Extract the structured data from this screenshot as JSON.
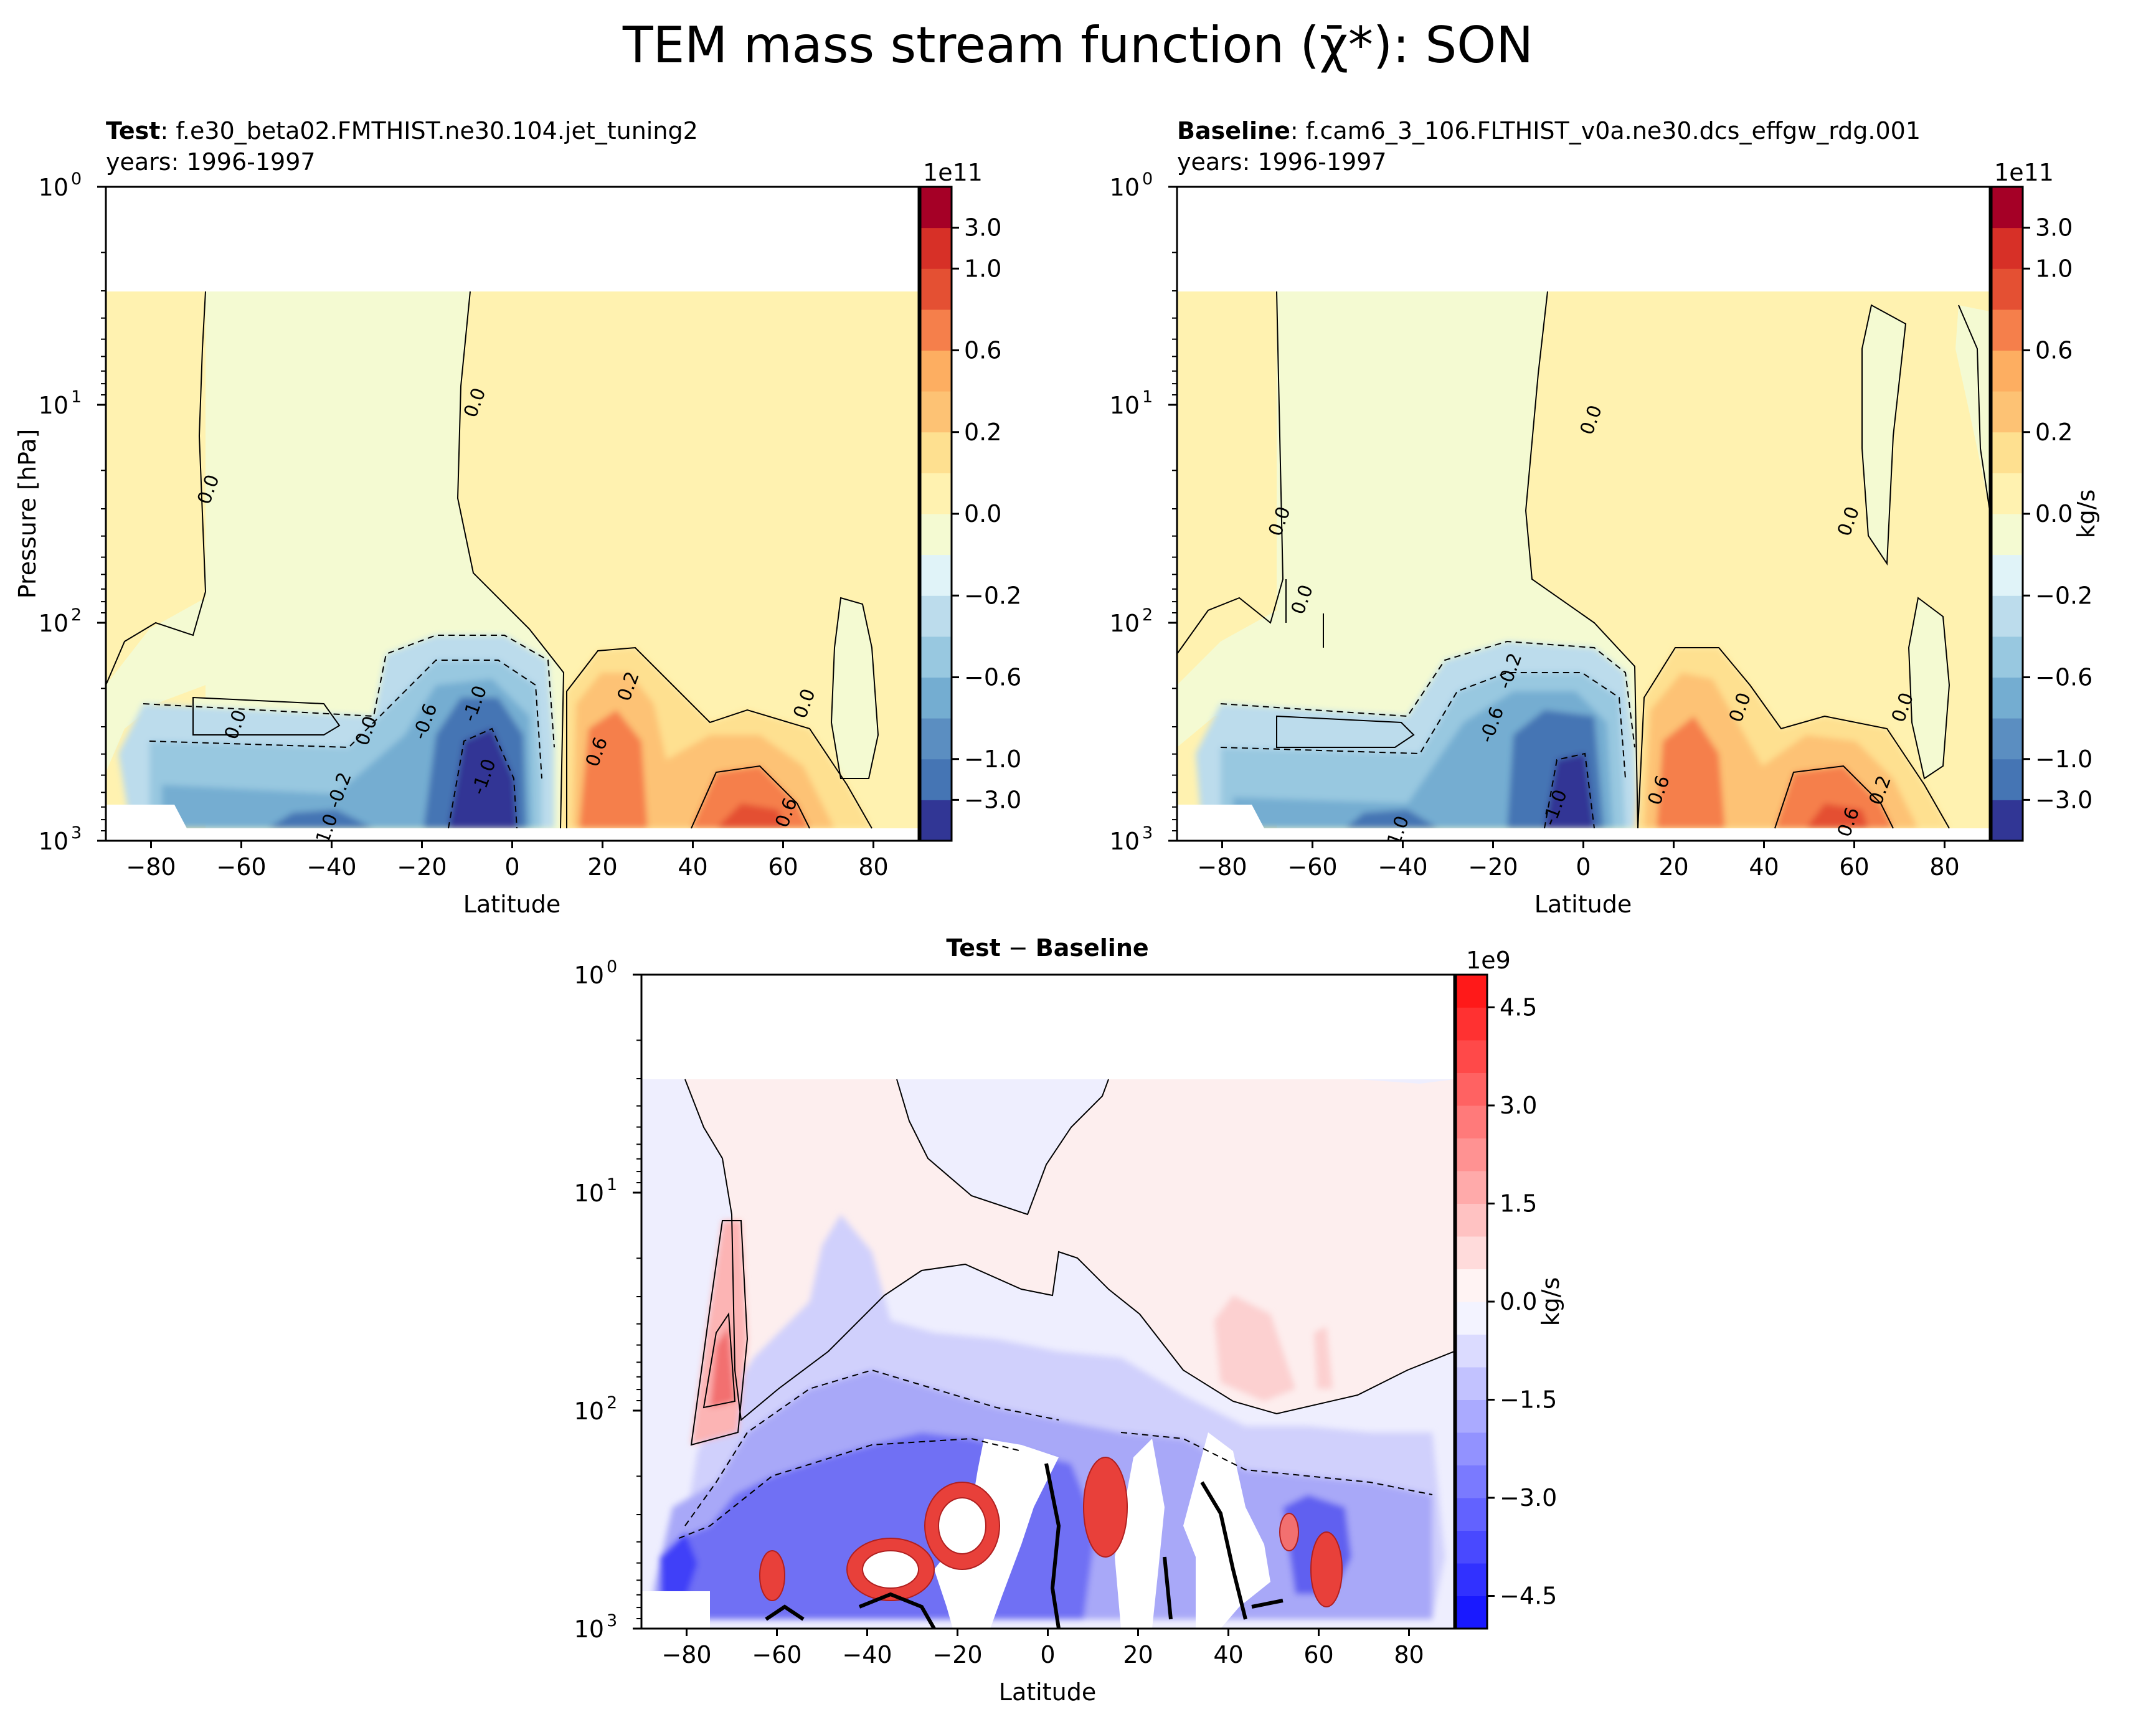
{
  "figure": {
    "suptitle": "TEM mass stream function (χ̄*): SON"
  },
  "chart_data": [
    {
      "id": "test",
      "type": "heatmap",
      "title_bold": "Test",
      "title_rest": ": f.e30_beta02.FMTHIST.ne30.104.jet_tuning2",
      "subtitle": "years: 1996-1997",
      "xlabel": "Latitude",
      "ylabel": "Pressure [hPa]",
      "x_ticks": [
        -80,
        -60,
        -40,
        -20,
        0,
        20,
        40,
        60,
        80
      ],
      "x_tick_labels": [
        "−80",
        "−60",
        "−40",
        "−20",
        "0",
        "20",
        "40",
        "60",
        "80"
      ],
      "xlim": [
        -90,
        90
      ],
      "y_scale": "log",
      "ylim": [
        1000,
        1
      ],
      "y_ticks": [
        1,
        10,
        100,
        1000
      ],
      "y_tick_labels": [
        "10",
        "10",
        "10",
        "10"
      ],
      "y_tick_exponents": [
        "0",
        "1",
        "2",
        "3"
      ],
      "colorbar": {
        "offset_text": "1e11",
        "unit": "",
        "levels": [
          -3.0,
          -1.0,
          -0.8,
          -0.6,
          -0.4,
          -0.2,
          -0.1,
          0.0,
          0.1,
          0.2,
          0.4,
          0.6,
          0.8,
          1.0,
          3.0
        ],
        "colors": [
          "#313695",
          "#4575b4",
          "#5b8ec1",
          "#74add1",
          "#98c8e0",
          "#bcdcec",
          "#e0f3f8",
          "#f4fad2",
          "#fff2b0",
          "#fee090",
          "#fdc274",
          "#fdae61",
          "#f57f4b",
          "#e45033",
          "#d73027",
          "#a50026"
        ],
        "tick_values": [
          3.0,
          1.0,
          0.6,
          0.2,
          0.0,
          -0.2,
          -0.6,
          -1.0,
          -3.0
        ],
        "tick_labels": [
          "3.0",
          "1.0",
          "0.6",
          "0.2",
          "0.0",
          "−0.2",
          "−0.6",
          "−1.0",
          "−3.0"
        ]
      },
      "contour_labels": [
        {
          "text": "0.0",
          "lat": -66,
          "p": 25
        },
        {
          "text": "0.0",
          "lat": -7,
          "p": 10
        },
        {
          "text": "0.0",
          "lat": -60,
          "p": 300
        },
        {
          "text": "0.0",
          "lat": -31,
          "p": 320
        },
        {
          "text": "-0.2",
          "lat": -37,
          "p": 600
        },
        {
          "text": "-1.0",
          "lat": -40,
          "p": 930
        },
        {
          "text": "-0.6",
          "lat": -18,
          "p": 290
        },
        {
          "text": "-1.0",
          "lat": -7,
          "p": 240
        },
        {
          "text": "-1.0",
          "lat": -5,
          "p": 520
        },
        {
          "text": "0.2",
          "lat": 27,
          "p": 200
        },
        {
          "text": "0.6",
          "lat": 20,
          "p": 400
        },
        {
          "text": "0.0",
          "lat": 66,
          "p": 240
        },
        {
          "text": "0.6",
          "lat": 62,
          "p": 760
        }
      ]
    },
    {
      "id": "baseline",
      "type": "heatmap",
      "title_bold": "Baseline",
      "title_rest": ": f.cam6_3_106.FLTHIST_v0a.ne30.dcs_effgw_rdg.001",
      "subtitle": "years: 1996-1997",
      "xlabel": "Latitude",
      "ylabel": "",
      "x_ticks": [
        -80,
        -60,
        -40,
        -20,
        0,
        20,
        40,
        60,
        80
      ],
      "x_tick_labels": [
        "−80",
        "−60",
        "−40",
        "−20",
        "0",
        "20",
        "40",
        "60",
        "80"
      ],
      "xlim": [
        -90,
        90
      ],
      "y_scale": "log",
      "ylim": [
        1000,
        1
      ],
      "y_ticks": [
        1,
        10,
        100,
        1000
      ],
      "y_tick_labels": [
        "10",
        "10",
        "10",
        "10"
      ],
      "y_tick_exponents": [
        "0",
        "1",
        "2",
        "3"
      ],
      "colorbar": {
        "offset_text": "1e11",
        "unit": "kg/s",
        "levels": [
          -3.0,
          -1.0,
          -0.8,
          -0.6,
          -0.4,
          -0.2,
          -0.1,
          0.0,
          0.1,
          0.2,
          0.4,
          0.6,
          0.8,
          1.0,
          3.0
        ],
        "colors": [
          "#313695",
          "#4575b4",
          "#5b8ec1",
          "#74add1",
          "#98c8e0",
          "#bcdcec",
          "#e0f3f8",
          "#f4fad2",
          "#fff2b0",
          "#fee090",
          "#fdc274",
          "#fdae61",
          "#f57f4b",
          "#e45033",
          "#d73027",
          "#a50026"
        ],
        "tick_values": [
          3.0,
          1.0,
          0.6,
          0.2,
          0.0,
          -0.2,
          -0.6,
          -1.0,
          -3.0
        ],
        "tick_labels": [
          "3.0",
          "1.0",
          "0.6",
          "0.2",
          "0.0",
          "−0.2",
          "−0.6",
          "−1.0",
          "−3.0"
        ]
      },
      "contour_labels": [
        {
          "text": "0.0",
          "lat": 3,
          "p": 12
        },
        {
          "text": "0.0",
          "lat": -66,
          "p": 35
        },
        {
          "text": "0.0",
          "lat": 60,
          "p": 35
        },
        {
          "text": "0.0",
          "lat": -61,
          "p": 80
        },
        {
          "text": "-0.2",
          "lat": -15,
          "p": 170
        },
        {
          "text": "-0.6",
          "lat": -19,
          "p": 300
        },
        {
          "text": "-1.0",
          "lat": -5,
          "p": 720
        },
        {
          "text": "-1.0",
          "lat": -40,
          "p": 950
        },
        {
          "text": "0.0",
          "lat": 36,
          "p": 250
        },
        {
          "text": "0.0",
          "lat": 72,
          "p": 250
        },
        {
          "text": "0.6",
          "lat": 18,
          "p": 600
        },
        {
          "text": "0.2",
          "lat": 67,
          "p": 600
        },
        {
          "text": "0.6",
          "lat": 60,
          "p": 840
        }
      ]
    },
    {
      "id": "diff",
      "type": "heatmap",
      "title": "Test − Baseline",
      "title_bold_a": "Test",
      "title_sep": " − ",
      "title_bold_b": "Baseline",
      "xlabel": "Latitude",
      "ylabel": "",
      "x_ticks": [
        -80,
        -60,
        -40,
        -20,
        0,
        20,
        40,
        60,
        80
      ],
      "x_tick_labels": [
        "−80",
        "−60",
        "−40",
        "−20",
        "0",
        "20",
        "40",
        "60",
        "80"
      ],
      "xlim": [
        -90,
        90
      ],
      "y_scale": "log",
      "ylim": [
        1000,
        1
      ],
      "y_ticks": [
        1,
        10,
        100,
        1000
      ],
      "y_tick_labels": [
        "10",
        "10",
        "10",
        "10"
      ],
      "y_tick_exponents": [
        "0",
        "1",
        "2",
        "3"
      ],
      "colorbar": {
        "offset_text": "1e9",
        "unit": "kg/s",
        "vmin": -5.0,
        "vmax": 5.0,
        "tick_values": [
          4.5,
          3.0,
          1.5,
          0.0,
          -1.5,
          -3.0,
          -4.5
        ],
        "tick_labels": [
          "4.5",
          "3.0",
          "1.5",
          "0.0",
          "−1.5",
          "−3.0",
          "−4.5"
        ]
      },
      "contour_labels": []
    }
  ]
}
